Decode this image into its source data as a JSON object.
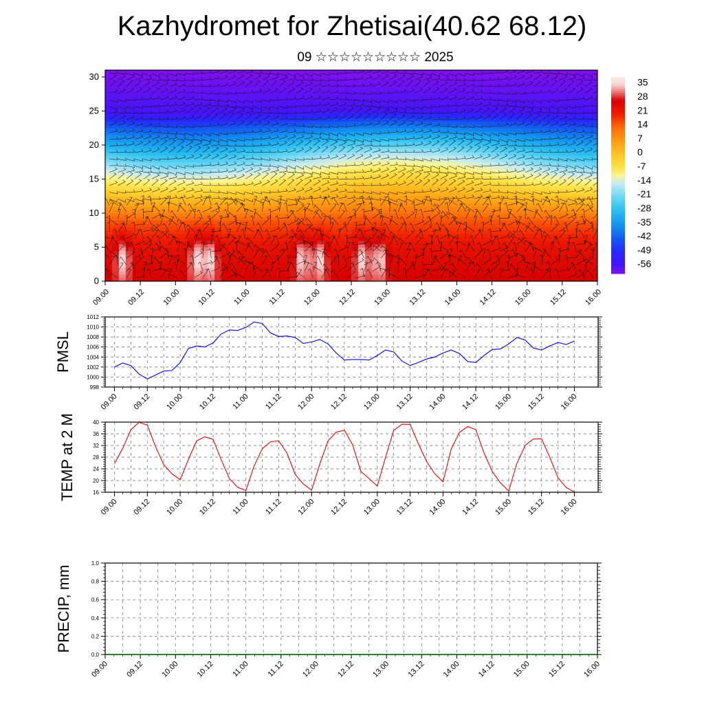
{
  "title": "Kazhydromet for Zhetisai(40.62 68.12)",
  "subtitle": "09 ☆☆☆☆☆☆☆☆☆ 2025",
  "x_tick_labels": [
    "09.00",
    "09.12",
    "10.00",
    "10.12",
    "11.00",
    "11.12",
    "12.00",
    "12.12",
    "13.00",
    "13.12",
    "14.00",
    "14.12",
    "15.00",
    "15.12",
    "16.00"
  ],
  "chart_data": [
    {
      "id": "cross-section",
      "type": "heatmap",
      "description_fields": "temperature shading with wind barbs vs height",
      "y_ticks": [
        0,
        5,
        10,
        15,
        20,
        25,
        30
      ],
      "ylim": [
        0,
        31
      ],
      "x_ticks": [
        "09.00",
        "09.12",
        "10.00",
        "10.12",
        "11.00",
        "11.12",
        "12.00",
        "12.12",
        "13.00",
        "13.12",
        "14.00",
        "14.12",
        "15.00",
        "15.12",
        "16.00"
      ],
      "colorbar": {
        "labels": [
          "35",
          "28",
          "21",
          "14",
          "7",
          "0",
          "-7",
          "-14",
          "-21",
          "-28",
          "-35",
          "-42",
          "-49",
          "-56"
        ],
        "range": [
          -60,
          40
        ]
      },
      "temperature_profile": [
        {
          "z": 0,
          "t": 28
        },
        {
          "z": 5,
          "t": 24
        },
        {
          "z": 9,
          "t": 16
        },
        {
          "z": 12,
          "t": 5
        },
        {
          "z": 15,
          "t": -7
        },
        {
          "z": 17,
          "t": -14
        },
        {
          "z": 20,
          "t": -28
        },
        {
          "z": 23,
          "t": -42
        },
        {
          "z": 25,
          "t": -56
        },
        {
          "z": 31,
          "t": -60
        }
      ],
      "warm_cores_x": [
        0.5,
        2.6,
        3.0,
        5.6,
        6.1,
        7.3,
        7.8
      ]
    },
    {
      "id": "pmsl",
      "type": "line",
      "ylabel": "PMSL",
      "ylim": [
        998,
        1012
      ],
      "y_ticks": [
        998,
        1000,
        1002,
        1004,
        1006,
        1008,
        1010,
        1012
      ],
      "x_ticks": [
        "09.00",
        "09.12",
        "10.00",
        "10.12",
        "11.00",
        "11.12",
        "12.00",
        "12.12",
        "13.00",
        "13.12",
        "14.00",
        "14.12",
        "15.00",
        "15.12",
        "16.00"
      ],
      "color": "#0000ee",
      "series": [
        {
          "values": [
            1002.0,
            1002.8,
            1002.3,
            1000.6,
            999.6,
            1000.4,
            1001.2,
            1001.3,
            1002.9,
            1005.7,
            1006.2,
            1006.0,
            1006.8,
            1008.6,
            1009.4,
            1009.3,
            1009.9,
            1011.0,
            1010.7,
            1008.8,
            1008.1,
            1008.2,
            1007.9,
            1006.7,
            1007.0,
            1007.5,
            1006.6,
            1004.8,
            1003.4,
            1003.5,
            1003.5,
            1003.4,
            1004.3,
            1005.4,
            1005.0,
            1003.2,
            1002.3,
            1002.9,
            1003.6,
            1004.0,
            1004.8,
            1005.4,
            1004.7,
            1003.1,
            1002.9,
            1004.3,
            1005.5,
            1005.6,
            1006.6,
            1007.9,
            1007.4,
            1005.8,
            1005.4,
            1006.2,
            1006.9,
            1006.5,
            1007.2
          ]
        }
      ]
    },
    {
      "id": "temp2m",
      "type": "line",
      "ylabel": "TEMP at 2 M",
      "ylim": [
        16,
        40
      ],
      "y_ticks": [
        16,
        20,
        24,
        28,
        32,
        36,
        40
      ],
      "x_ticks": [
        "09.00",
        "09.12",
        "10.00",
        "10.12",
        "11.00",
        "11.12",
        "12.00",
        "12.12",
        "13.00",
        "13.12",
        "14.00",
        "14.12",
        "15.00",
        "15.12",
        "16.00"
      ],
      "color": "#ee0000",
      "series": [
        {
          "values": [
            25.8,
            31.0,
            37.4,
            39.9,
            39.0,
            31.6,
            25.4,
            22.3,
            20.3,
            27.2,
            33.6,
            35.0,
            34.1,
            27.1,
            20.6,
            17.7,
            16.6,
            25.0,
            30.9,
            33.3,
            33.6,
            29.4,
            22.1,
            18.8,
            16.7,
            25.7,
            33.6,
            36.6,
            37.2,
            32.2,
            23.1,
            20.7,
            18.1,
            27.9,
            37.2,
            39.3,
            39.2,
            32.6,
            26.5,
            22.3,
            19.6,
            30.8,
            36.5,
            38.5,
            37.4,
            29.4,
            23.1,
            19.2,
            16.4,
            25.9,
            32.0,
            34.2,
            34.3,
            27.9,
            21.0,
            17.6,
            16.1
          ]
        }
      ]
    },
    {
      "id": "precip",
      "type": "line",
      "ylabel": "PRECIP, mm",
      "ylim": [
        0,
        1
      ],
      "y_ticks": [
        "0.0",
        "0.2",
        "0.4",
        "0.6",
        "0.8",
        "1.0"
      ],
      "x_ticks": [
        "09.00",
        "09.12",
        "10.00",
        "10.12",
        "11.00",
        "11.12",
        "12.00",
        "12.12",
        "13.00",
        "13.12",
        "14.00",
        "14.12",
        "15.00",
        "15.12",
        "16.00"
      ],
      "color": "#006400",
      "series": [
        {
          "values": [
            0,
            0,
            0,
            0,
            0,
            0,
            0,
            0,
            0,
            0,
            0,
            0,
            0,
            0,
            0,
            0,
            0,
            0,
            0,
            0,
            0,
            0,
            0,
            0,
            0,
            0,
            0,
            0,
            0,
            0,
            0,
            0,
            0,
            0,
            0,
            0,
            0,
            0,
            0,
            0,
            0,
            0,
            0,
            0,
            0,
            0,
            0,
            0,
            0,
            0,
            0,
            0,
            0,
            0,
            0,
            0,
            0
          ]
        }
      ]
    }
  ],
  "colors": {
    "pmsl_line": "#0000ee",
    "temp_line": "#ee0000",
    "precip_line": "#006400",
    "grid": "#777777",
    "frame": "#000000"
  }
}
